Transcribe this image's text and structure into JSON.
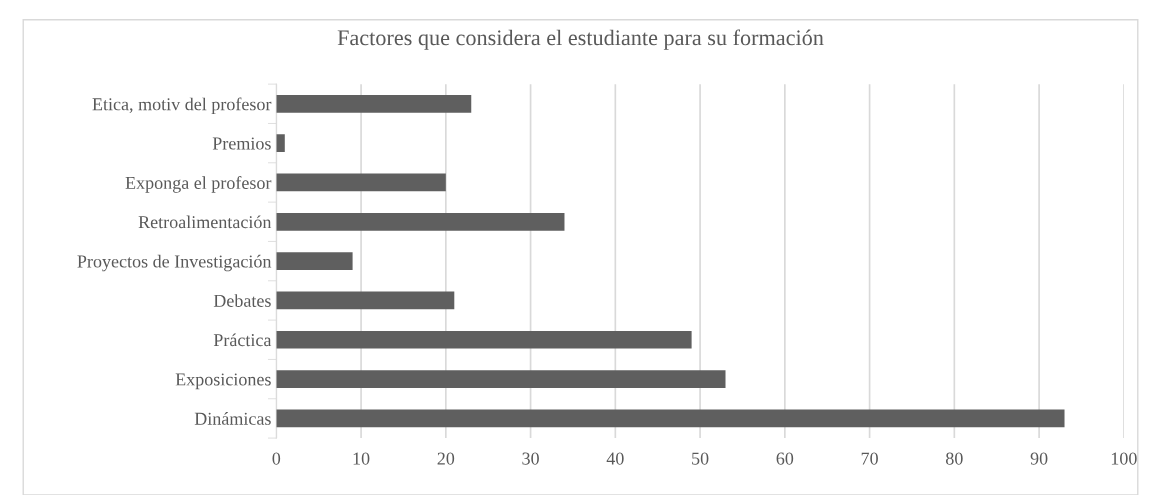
{
  "chart_data": {
    "type": "bar",
    "orientation": "horizontal",
    "title": "Factores que considera el estudiante para su formación",
    "categories": [
      "Etica, motiv del profesor",
      "Premios",
      "Exponga el profesor",
      "Retroalimentación",
      "Proyectos de Investigación",
      "Debates",
      "Práctica",
      "Exposiciones",
      "Dinámicas"
    ],
    "values": [
      23,
      1,
      20,
      34,
      9,
      21,
      49,
      53,
      93
    ],
    "color": "#5f5f5f",
    "xlim": [
      0,
      100
    ],
    "xticks": [
      0,
      10,
      20,
      30,
      40,
      50,
      60,
      70,
      80,
      90,
      100
    ],
    "grid": "x",
    "legend": false
  }
}
